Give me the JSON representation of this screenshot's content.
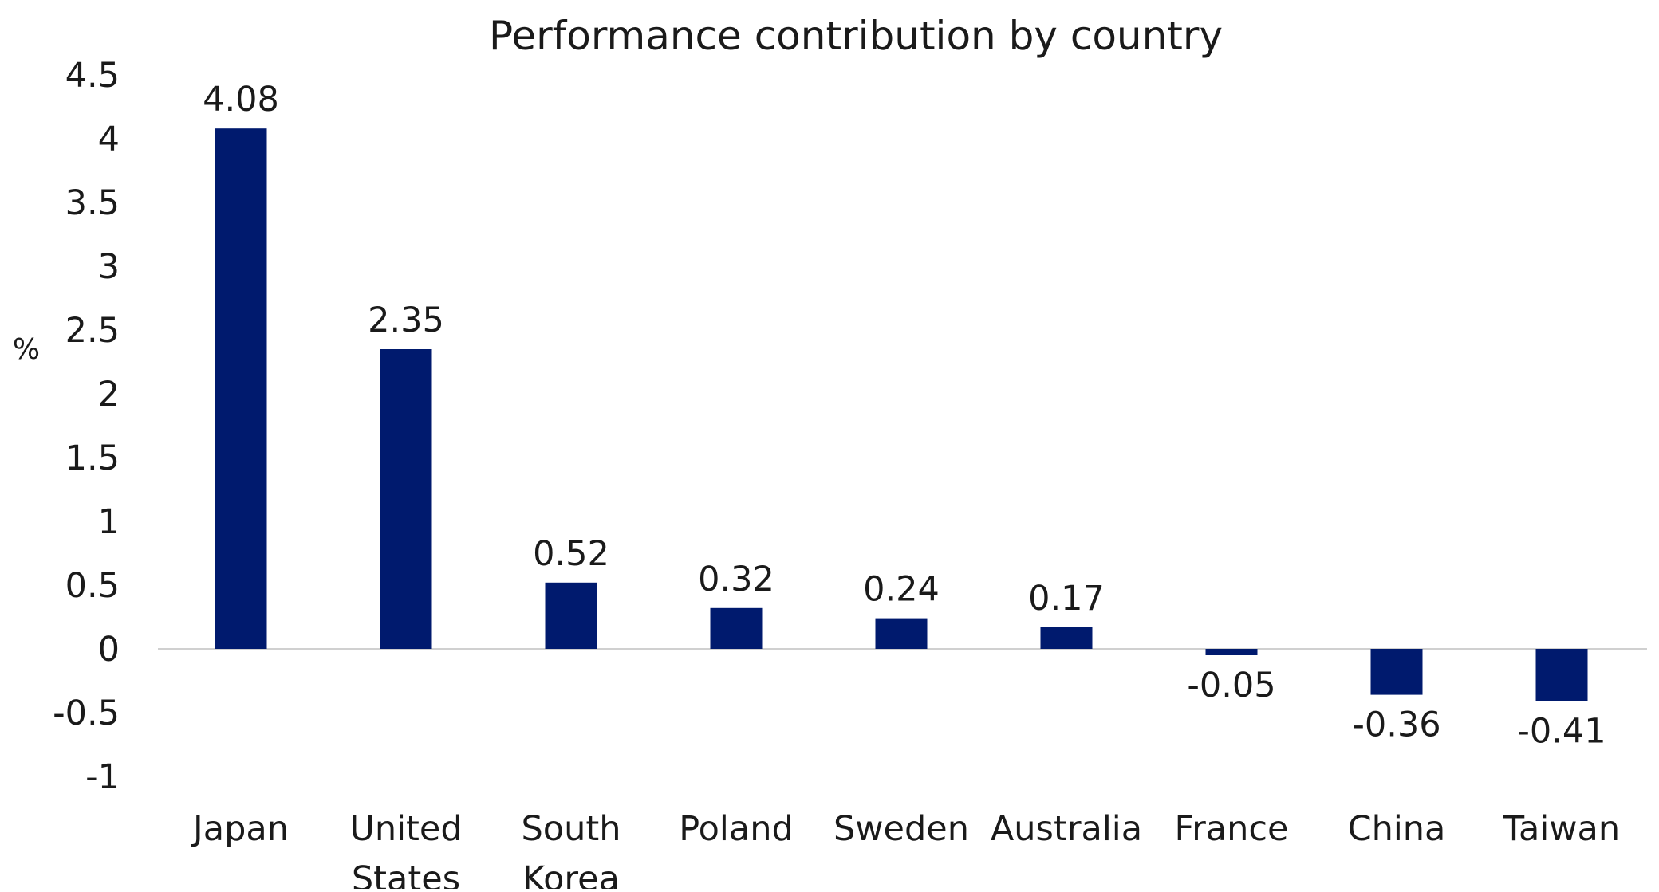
{
  "chart_data": {
    "type": "bar",
    "title": "Performance contribution by country",
    "ylabel": "%",
    "xlabel": "",
    "categories": [
      "Japan",
      "United States",
      "South Korea",
      "Poland",
      "Sweden",
      "Australia",
      "France",
      "China",
      "Taiwan"
    ],
    "category_lines": [
      [
        "Japan"
      ],
      [
        "United",
        "States"
      ],
      [
        "South",
        "Korea"
      ],
      [
        "Poland"
      ],
      [
        "Sweden"
      ],
      [
        "Australia"
      ],
      [
        "France"
      ],
      [
        "China"
      ],
      [
        "Taiwan"
      ]
    ],
    "values": [
      4.08,
      2.35,
      0.52,
      0.32,
      0.24,
      0.17,
      -0.05,
      -0.36,
      -0.41
    ],
    "data_labels": [
      "4.08",
      "2.35",
      "0.52",
      "0.32",
      "0.24",
      "0.17",
      "-0.05",
      "-0.36",
      "-0.41"
    ],
    "ylim": [
      -1,
      4.5
    ],
    "yticks": [
      -1,
      -0.5,
      0,
      0.5,
      1,
      1.5,
      2,
      2.5,
      3,
      3.5,
      4,
      4.5
    ],
    "ytick_labels": [
      "-1",
      "-0.5",
      "0",
      "0.5",
      "1",
      "1.5",
      "2",
      "2.5",
      "3",
      "3.5",
      "4",
      "4.5"
    ],
    "grid": false,
    "legend": "none",
    "colors": {
      "bar": "#001a6e",
      "zero_line": "#d0d0d0",
      "text": "#1a1a1a"
    }
  }
}
